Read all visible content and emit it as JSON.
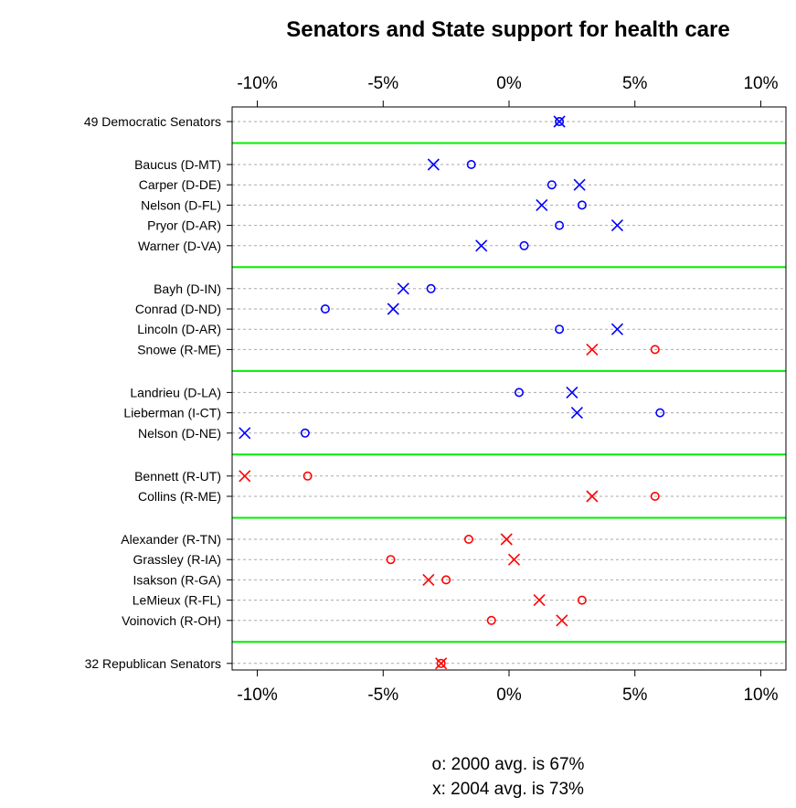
{
  "chart_data": {
    "type": "scatter",
    "title": "Senators and State support for health care",
    "xlim": [
      -11,
      11
    ],
    "x_ticks": [
      {
        "value": -10,
        "label": "-10%"
      },
      {
        "value": -5,
        "label": "-5%"
      },
      {
        "value": 0,
        "label": "0%"
      },
      {
        "value": 5,
        "label": "5%"
      },
      {
        "value": 10,
        "label": "10%"
      }
    ],
    "grid": "dashed horizontal",
    "separator_color": "#00ee00",
    "markers": {
      "2000": "o",
      "2004": "x"
    },
    "groups": [
      {
        "rows": [
          {
            "label": "49 Democratic Senators",
            "color": "#0000ff",
            "o": 2.0,
            "x": 2.0
          }
        ]
      },
      {
        "rows": [
          {
            "label": "Baucus (D-MT)",
            "color": "#0000ff",
            "o": -1.5,
            "x": -3.0
          },
          {
            "label": "Carper (D-DE)",
            "color": "#0000ff",
            "o": 1.7,
            "x": 2.8
          },
          {
            "label": "Nelson (D-FL)",
            "color": "#0000ff",
            "o": 2.9,
            "x": 1.3
          },
          {
            "label": "Pryor (D-AR)",
            "color": "#0000ff",
            "o": 2.0,
            "x": 4.3
          },
          {
            "label": "Warner (D-VA)",
            "color": "#0000ff",
            "o": 0.6,
            "x": -1.1
          }
        ]
      },
      {
        "rows": [
          {
            "label": "Bayh (D-IN)",
            "color": "#0000ff",
            "o": -3.1,
            "x": -4.2
          },
          {
            "label": "Conrad (D-ND)",
            "color": "#0000ff",
            "o": -7.3,
            "x": -4.6
          },
          {
            "label": "Lincoln (D-AR)",
            "color": "#0000ff",
            "o": 2.0,
            "x": 4.3
          },
          {
            "label": "Snowe (R-ME)",
            "color": "#ff0000",
            "o": 5.8,
            "x": 3.3
          }
        ]
      },
      {
        "rows": [
          {
            "label": "Landrieu (D-LA)",
            "color": "#0000ff",
            "o": 0.4,
            "x": 2.5
          },
          {
            "label": "Lieberman (I-CT)",
            "color": "#0000ff",
            "o": 6.0,
            "x": 2.7
          },
          {
            "label": "Nelson (D-NE)",
            "color": "#0000ff",
            "o": -8.1,
            "x": -10.5
          }
        ]
      },
      {
        "rows": [
          {
            "label": "Bennett (R-UT)",
            "color": "#ff0000",
            "o": -8.0,
            "x": -10.5
          },
          {
            "label": "Collins (R-ME)",
            "color": "#ff0000",
            "o": 5.8,
            "x": 3.3
          }
        ]
      },
      {
        "rows": [
          {
            "label": "Alexander (R-TN)",
            "color": "#ff0000",
            "o": -1.6,
            "x": -0.1
          },
          {
            "label": "Grassley (R-IA)",
            "color": "#ff0000",
            "o": -4.7,
            "x": 0.2
          },
          {
            "label": "Isakson (R-GA)",
            "color": "#ff0000",
            "o": -2.5,
            "x": -3.2
          },
          {
            "label": "LeMieux (R-FL)",
            "color": "#ff0000",
            "o": 2.9,
            "x": 1.2
          },
          {
            "label": "Voinovich (R-OH)",
            "color": "#ff0000",
            "o": -0.7,
            "x": 2.1
          }
        ]
      },
      {
        "rows": [
          {
            "label": "32 Republican Senators",
            "color": "#ff0000",
            "o": -2.7,
            "x": -2.7
          }
        ]
      }
    ],
    "footer": [
      "o: 2000 avg. is 67%",
      "x: 2004 avg. is 73%"
    ]
  }
}
